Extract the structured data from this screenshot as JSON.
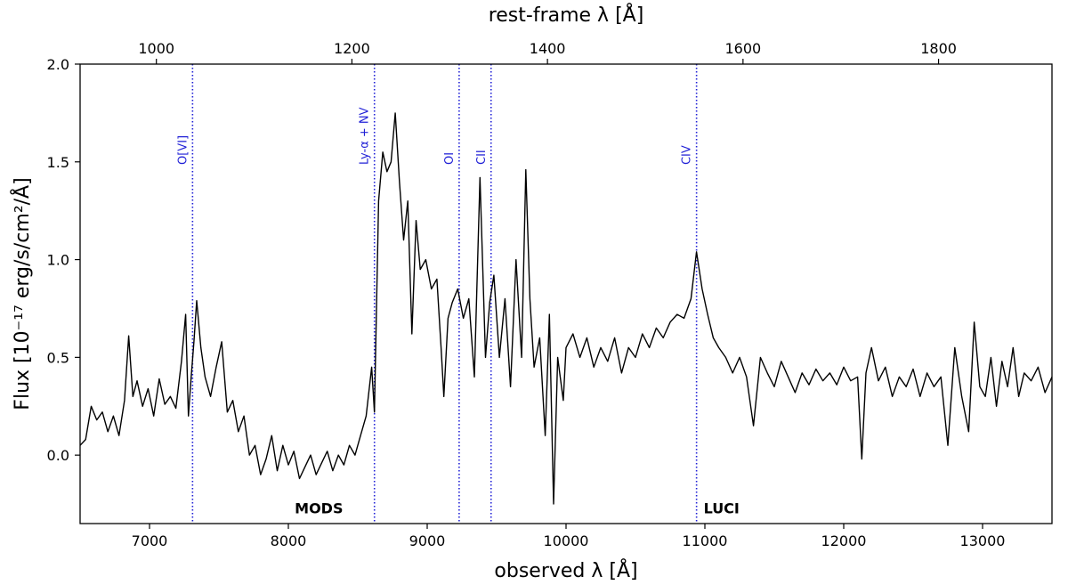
{
  "chart_data": {
    "type": "line",
    "xlabel": "observed λ [Å]",
    "x2label": "rest-frame λ [Å]",
    "ylabel": "Flux [10⁻¹⁷ erg/s/cm²/Å]",
    "xlim": [
      6500,
      13500
    ],
    "ylim": [
      -0.35,
      2.0
    ],
    "x2lim": [
      922,
      1916
    ],
    "xticks": [
      7000,
      8000,
      9000,
      10000,
      11000,
      12000,
      13000
    ],
    "yticks": [
      0.0,
      0.5,
      1.0,
      1.5,
      2.0
    ],
    "x2ticks": [
      1000,
      1200,
      1400,
      1600,
      1800
    ],
    "line_color": "#000000",
    "marker_color": "#1f1fd6",
    "grid": false,
    "emission_lines": [
      {
        "label": "O[VI]",
        "x": 7310
      },
      {
        "label": "Ly-α + NV",
        "x": 8620
      },
      {
        "label": "OI",
        "x": 9230
      },
      {
        "label": "CII",
        "x": 9460
      },
      {
        "label": "CIV",
        "x": 10940
      }
    ],
    "instrument_labels": [
      {
        "label": "MODS",
        "x": 8220,
        "y": -0.27
      },
      {
        "label": "LUCI",
        "x": 11120,
        "y": -0.27
      }
    ],
    "series": [
      {
        "values": [
          [
            6500,
            0.05
          ],
          [
            6540,
            0.08
          ],
          [
            6580,
            0.25
          ],
          [
            6620,
            0.18
          ],
          [
            6660,
            0.22
          ],
          [
            6700,
            0.12
          ],
          [
            6740,
            0.2
          ],
          [
            6780,
            0.1
          ],
          [
            6820,
            0.28
          ],
          [
            6850,
            0.61
          ],
          [
            6880,
            0.3
          ],
          [
            6910,
            0.38
          ],
          [
            6950,
            0.25
          ],
          [
            6990,
            0.34
          ],
          [
            7030,
            0.2
          ],
          [
            7070,
            0.39
          ],
          [
            7110,
            0.26
          ],
          [
            7150,
            0.3
          ],
          [
            7190,
            0.24
          ],
          [
            7230,
            0.48
          ],
          [
            7260,
            0.72
          ],
          [
            7280,
            0.2
          ],
          [
            7300,
            0.4
          ],
          [
            7320,
            0.58
          ],
          [
            7340,
            0.79
          ],
          [
            7370,
            0.55
          ],
          [
            7400,
            0.4
          ],
          [
            7440,
            0.3
          ],
          [
            7480,
            0.45
          ],
          [
            7520,
            0.58
          ],
          [
            7560,
            0.22
          ],
          [
            7600,
            0.28
          ],
          [
            7640,
            0.12
          ],
          [
            7680,
            0.2
          ],
          [
            7720,
            0.0
          ],
          [
            7760,
            0.05
          ],
          [
            7800,
            -0.1
          ],
          [
            7840,
            -0.02
          ],
          [
            7880,
            0.1
          ],
          [
            7920,
            -0.08
          ],
          [
            7960,
            0.05
          ],
          [
            8000,
            -0.05
          ],
          [
            8040,
            0.02
          ],
          [
            8080,
            -0.12
          ],
          [
            8120,
            -0.06
          ],
          [
            8160,
            0.0
          ],
          [
            8200,
            -0.1
          ],
          [
            8240,
            -0.04
          ],
          [
            8280,
            0.02
          ],
          [
            8320,
            -0.08
          ],
          [
            8360,
            0.0
          ],
          [
            8400,
            -0.05
          ],
          [
            8440,
            0.05
          ],
          [
            8480,
            0.0
          ],
          [
            8520,
            0.1
          ],
          [
            8560,
            0.2
          ],
          [
            8600,
            0.45
          ],
          [
            8620,
            0.22
          ],
          [
            8650,
            1.3
          ],
          [
            8680,
            1.55
          ],
          [
            8710,
            1.45
          ],
          [
            8740,
            1.5
          ],
          [
            8770,
            1.75
          ],
          [
            8800,
            1.4
          ],
          [
            8830,
            1.1
          ],
          [
            8860,
            1.3
          ],
          [
            8890,
            0.62
          ],
          [
            8920,
            1.2
          ],
          [
            8950,
            0.95
          ],
          [
            8990,
            1.0
          ],
          [
            9030,
            0.85
          ],
          [
            9070,
            0.9
          ],
          [
            9100,
            0.55
          ],
          [
            9120,
            0.3
          ],
          [
            9150,
            0.7
          ],
          [
            9180,
            0.78
          ],
          [
            9220,
            0.85
          ],
          [
            9260,
            0.7
          ],
          [
            9300,
            0.8
          ],
          [
            9340,
            0.4
          ],
          [
            9380,
            1.42
          ],
          [
            9420,
            0.5
          ],
          [
            9450,
            0.78
          ],
          [
            9480,
            0.92
          ],
          [
            9520,
            0.5
          ],
          [
            9560,
            0.8
          ],
          [
            9600,
            0.35
          ],
          [
            9640,
            1.0
          ],
          [
            9680,
            0.5
          ],
          [
            9710,
            1.46
          ],
          [
            9740,
            0.8
          ],
          [
            9770,
            0.45
          ],
          [
            9810,
            0.6
          ],
          [
            9850,
            0.1
          ],
          [
            9880,
            0.72
          ],
          [
            9910,
            -0.25
          ],
          [
            9940,
            0.5
          ],
          [
            9980,
            0.28
          ],
          [
            10000,
            0.55
          ],
          [
            10050,
            0.62
          ],
          [
            10100,
            0.5
          ],
          [
            10150,
            0.6
          ],
          [
            10200,
            0.45
          ],
          [
            10250,
            0.55
          ],
          [
            10300,
            0.48
          ],
          [
            10350,
            0.6
          ],
          [
            10400,
            0.42
          ],
          [
            10450,
            0.55
          ],
          [
            10500,
            0.5
          ],
          [
            10550,
            0.62
          ],
          [
            10600,
            0.55
          ],
          [
            10650,
            0.65
          ],
          [
            10700,
            0.6
          ],
          [
            10750,
            0.68
          ],
          [
            10800,
            0.72
          ],
          [
            10850,
            0.7
          ],
          [
            10900,
            0.8
          ],
          [
            10940,
            1.04
          ],
          [
            10980,
            0.85
          ],
          [
            11020,
            0.72
          ],
          [
            11060,
            0.6
          ],
          [
            11100,
            0.55
          ],
          [
            11150,
            0.5
          ],
          [
            11200,
            0.42
          ],
          [
            11250,
            0.5
          ],
          [
            11300,
            0.4
          ],
          [
            11350,
            0.15
          ],
          [
            11400,
            0.5
          ],
          [
            11450,
            0.42
          ],
          [
            11500,
            0.35
          ],
          [
            11550,
            0.48
          ],
          [
            11600,
            0.4
          ],
          [
            11650,
            0.32
          ],
          [
            11700,
            0.42
          ],
          [
            11750,
            0.36
          ],
          [
            11800,
            0.44
          ],
          [
            11850,
            0.38
          ],
          [
            11900,
            0.42
          ],
          [
            11950,
            0.36
          ],
          [
            12000,
            0.45
          ],
          [
            12050,
            0.38
          ],
          [
            12100,
            0.4
          ],
          [
            12130,
            -0.02
          ],
          [
            12160,
            0.42
          ],
          [
            12200,
            0.55
          ],
          [
            12250,
            0.38
          ],
          [
            12300,
            0.45
          ],
          [
            12350,
            0.3
          ],
          [
            12400,
            0.4
          ],
          [
            12450,
            0.35
          ],
          [
            12500,
            0.44
          ],
          [
            12550,
            0.3
          ],
          [
            12600,
            0.42
          ],
          [
            12650,
            0.35
          ],
          [
            12700,
            0.4
          ],
          [
            12750,
            0.05
          ],
          [
            12800,
            0.55
          ],
          [
            12850,
            0.3
          ],
          [
            12900,
            0.12
          ],
          [
            12940,
            0.68
          ],
          [
            12980,
            0.35
          ],
          [
            13020,
            0.3
          ],
          [
            13060,
            0.5
          ],
          [
            13100,
            0.25
          ],
          [
            13140,
            0.48
          ],
          [
            13180,
            0.35
          ],
          [
            13220,
            0.55
          ],
          [
            13260,
            0.3
          ],
          [
            13300,
            0.42
          ],
          [
            13350,
            0.38
          ],
          [
            13400,
            0.45
          ],
          [
            13450,
            0.32
          ],
          [
            13500,
            0.4
          ]
        ]
      }
    ],
    "annotations": [
      "MODS",
      "LUCI"
    ]
  }
}
